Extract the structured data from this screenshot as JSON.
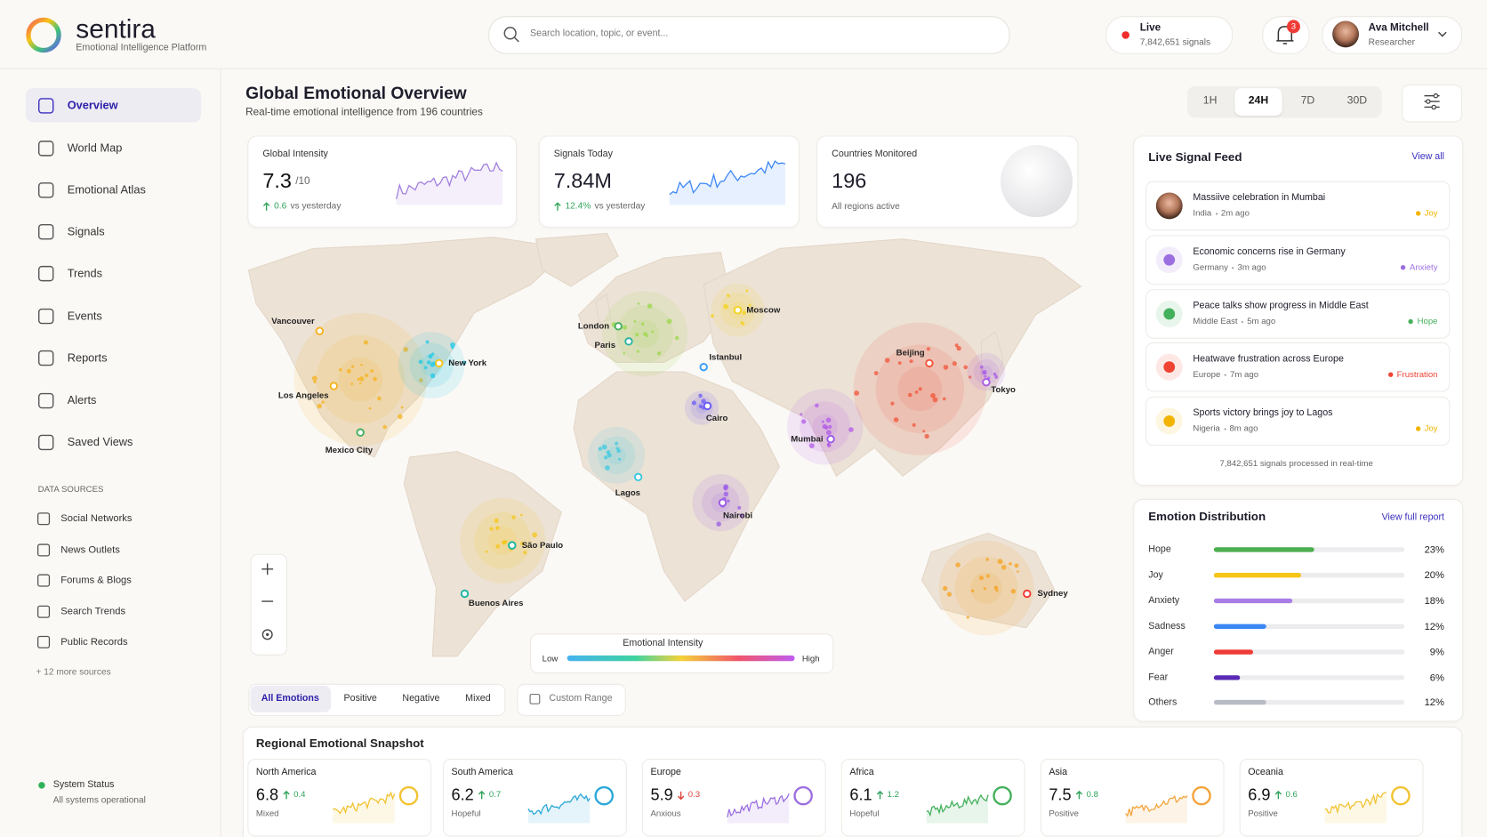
{
  "header": {
    "brand": "sentira",
    "tagline": "Emotional Intelligence Platform",
    "search_placeholder": "Search location, topic, or event...",
    "live": {
      "label": "Live",
      "signals": "7,842,651 signals"
    },
    "notifications": 3,
    "user": {
      "name": "Ava Mitchell",
      "role": "Researcher"
    }
  },
  "nav": {
    "items": [
      "Overview",
      "World Map",
      "Emotional Atlas",
      "Signals",
      "Trends",
      "Events",
      "Reports",
      "Alerts",
      "Saved Views"
    ],
    "active": 0,
    "sources_title": "DATA SOURCES",
    "sources": [
      "Social Networks",
      "News Outlets",
      "Forums & Blogs",
      "Search Trends",
      "Public Records"
    ],
    "more": "+ 12 more sources",
    "status": {
      "title": "System Status",
      "text": "All systems operational"
    }
  },
  "page": {
    "title": "Global Emotional Overview",
    "subtitle": "Real-time emotional intelligence from 196 countries",
    "ranges": [
      "1H",
      "24H",
      "7D",
      "30D"
    ],
    "active_range": 1
  },
  "stats": [
    {
      "label": "Global Intensity",
      "value": 7.3,
      "unit": "/10",
      "change": 0.6,
      "note": "vs yesterday"
    },
    {
      "label": "Signals Today",
      "value": "7.84M",
      "change": "12.4%",
      "note": "vs yesterday"
    },
    {
      "label": "Countries Monitored",
      "value": 196,
      "note": "All regions active"
    }
  ],
  "map": {
    "cities": [
      "Vancouver",
      "New York",
      "Los Angeles",
      "Mexico City",
      "London",
      "Paris",
      "Moscow",
      "Istanbul",
      "Cairo",
      "Beijing",
      "Tokyo",
      "Mumbai",
      "Lagos",
      "Nairobi",
      "São Paulo",
      "Buenos Aires",
      "Sydney"
    ],
    "legend": {
      "title": "Emotional Intensity",
      "low": "Low",
      "high": "High"
    },
    "filters": [
      "All Emotions",
      "Positive",
      "Negative",
      "Mixed"
    ],
    "active_filter": 0,
    "custom_range": "Custom Range"
  },
  "feed": {
    "title": "Live Signal Feed",
    "view_all": "View all",
    "items": [
      {
        "title": "Massiive celebration in Mumbai",
        "place": "India",
        "time": "2m ago",
        "emotion": "Joy",
        "color": "#f2b400"
      },
      {
        "title": "Economic concerns rise in Germany",
        "place": "Germany",
        "time": "3m ago",
        "emotion": "Anxiety",
        "color": "#9b6fe0"
      },
      {
        "title": "Peace talks show progress in Middle East",
        "place": "Middle East",
        "time": "5m ago",
        "emotion": "Hope",
        "color": "#43b05c"
      },
      {
        "title": "Heatwave frustration across Europe",
        "place": "Europe",
        "time": "7m ago",
        "emotion": "Frustration",
        "color": "#ef4433"
      },
      {
        "title": "Sports victory brings joy to Lagos",
        "place": "Nigeria",
        "time": "8m ago",
        "emotion": "Joy",
        "color": "#f2b400"
      }
    ],
    "footer": "7,842,651 signals processed in real-time"
  },
  "distribution": {
    "title": "Emotion Distribution",
    "link": "View full report",
    "rows": [
      {
        "name": "Hope",
        "value": 23,
        "label": "23%",
        "color": "#4caf50"
      },
      {
        "name": "Joy",
        "value": 20,
        "label": "20%",
        "color": "#f5c518"
      },
      {
        "name": "Anxiety",
        "value": 18,
        "label": "18%",
        "color": "#a87ee6"
      },
      {
        "name": "Sadness",
        "value": 12,
        "label": "12%",
        "color": "#3a86f5"
      },
      {
        "name": "Anger",
        "value": 9,
        "label": "9%",
        "color": "#ef3b36"
      },
      {
        "name": "Fear",
        "value": 6,
        "label": "6%",
        "color": "#5b2ab5"
      },
      {
        "name": "Others",
        "value": 12,
        "label": "12%",
        "color": "#b8bcc4"
      }
    ]
  },
  "regions": {
    "title": "Regional Emotional Snapshot",
    "items": [
      {
        "name": "North America",
        "value": 6.8,
        "change": 0.4,
        "direction": "up",
        "mood": "Mixed",
        "color": "#f2c230"
      },
      {
        "name": "South America",
        "value": 6.2,
        "change": 0.7,
        "direction": "up",
        "mood": "Hopeful",
        "color": "#2aa7d8"
      },
      {
        "name": "Europe",
        "value": 5.9,
        "change": 0.3,
        "direction": "down",
        "mood": "Anxious",
        "color": "#9b6fe0"
      },
      {
        "name": "Africa",
        "value": 6.1,
        "change": 1.2,
        "direction": "up",
        "mood": "Hopeful",
        "color": "#43b05c"
      },
      {
        "name": "Asia",
        "value": 7.5,
        "change": 0.8,
        "direction": "up",
        "mood": "Positive",
        "color": "#f2a33a"
      },
      {
        "name": "Oceania",
        "value": 6.9,
        "change": 0.6,
        "direction": "up",
        "mood": "Positive",
        "color": "#f2c230"
      }
    ]
  }
}
